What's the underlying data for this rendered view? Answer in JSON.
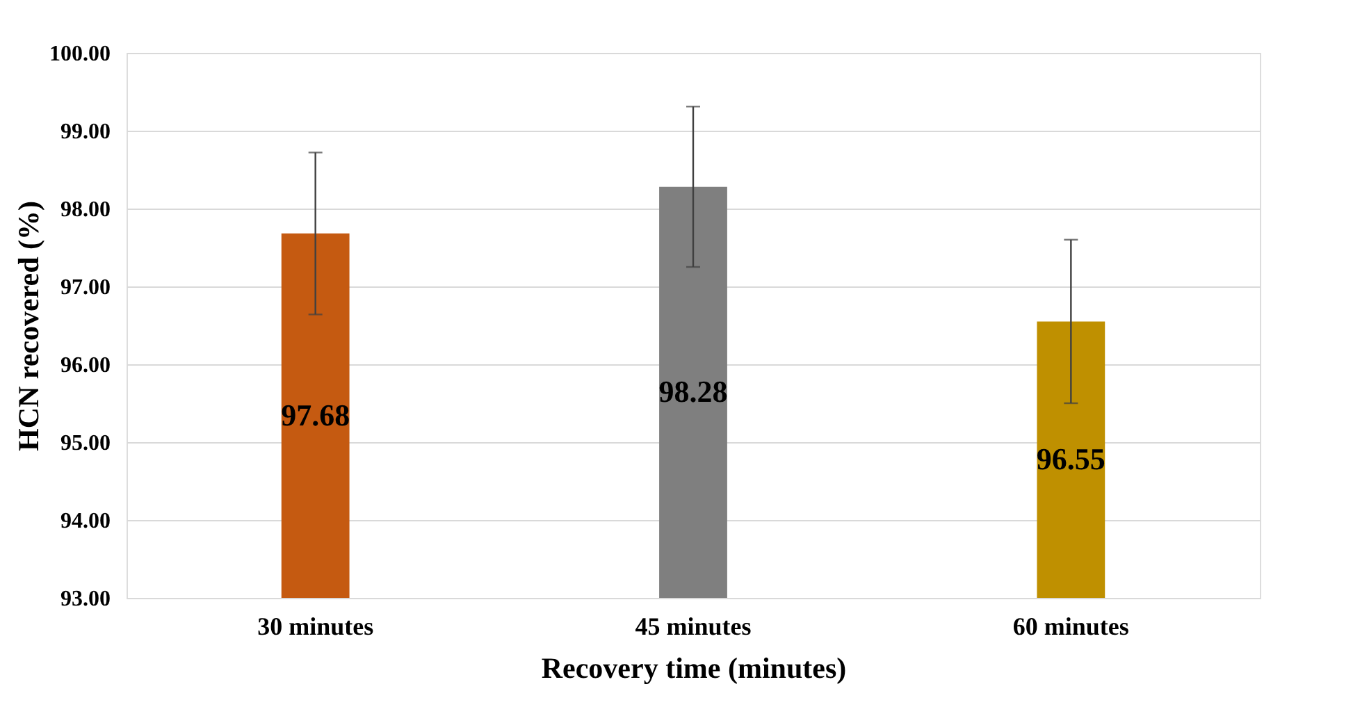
{
  "chart_data": {
    "type": "bar",
    "xlabel": "Recovery time (minutes)",
    "ylabel": "HCN recovered (%)",
    "categories": [
      "30 minutes",
      "45 minutes",
      "60 minutes"
    ],
    "values": [
      97.68,
      98.28,
      96.55
    ],
    "colors": [
      "#c55a11",
      "#7f7f7f",
      "#bf9000"
    ],
    "errors": [
      1.04,
      1.03,
      1.05
    ],
    "ylim": [
      93,
      100
    ],
    "yticks": [
      {
        "value": 93,
        "label": "93.00"
      },
      {
        "value": 94,
        "label": "94.00"
      },
      {
        "value": 95,
        "label": "95.00"
      },
      {
        "value": 96,
        "label": "96.00"
      },
      {
        "value": 97,
        "label": "97.00"
      },
      {
        "value": 98,
        "label": "98.00"
      },
      {
        "value": 99,
        "label": "99.00"
      },
      {
        "value": 100,
        "label": "100.00"
      }
    ],
    "grid": "y",
    "data_labels": true
  }
}
